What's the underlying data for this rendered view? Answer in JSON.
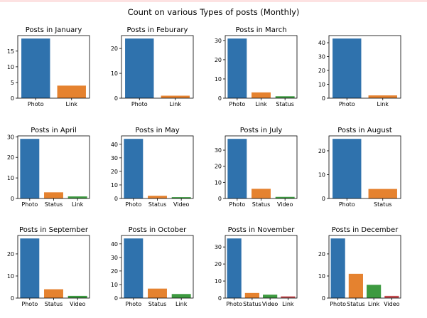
{
  "suptitle": "Count on various Types of posts (Monthly)",
  "colors": {
    "Photo": "#2f72ad",
    "Link": "#e5822f",
    "Status": "#e5822f",
    "Video": "#3d9a40",
    "Link3": "#c44e52"
  },
  "chart_data": [
    {
      "type": "bar",
      "title": "Posts in January",
      "categories": [
        "Photo",
        "Link"
      ],
      "values": [
        19,
        4
      ],
      "ylim": [
        0,
        19.95
      ],
      "yticks": [
        0,
        5,
        10,
        15
      ],
      "colors": [
        "#2f72ad",
        "#e5822f"
      ]
    },
    {
      "type": "bar",
      "title": "Posts in Feburary",
      "categories": [
        "Photo",
        "Link"
      ],
      "values": [
        24,
        1
      ],
      "ylim": [
        0,
        25.2
      ],
      "yticks": [
        0,
        10,
        20
      ],
      "colors": [
        "#2f72ad",
        "#e5822f"
      ]
    },
    {
      "type": "bar",
      "title": "Posts in March",
      "categories": [
        "Photo",
        "Link",
        "Status"
      ],
      "values": [
        31,
        3,
        1
      ],
      "ylim": [
        0,
        32.55
      ],
      "yticks": [
        0,
        10,
        20,
        30
      ],
      "colors": [
        "#2f72ad",
        "#e5822f",
        "#3d9a40"
      ]
    },
    {
      "type": "bar",
      "title": "",
      "categories": [
        "Photo",
        "Link"
      ],
      "values": [
        43,
        2
      ],
      "ylim": [
        0,
        45.15
      ],
      "yticks": [
        0,
        10,
        20,
        30,
        40
      ],
      "colors": [
        "#2f72ad",
        "#e5822f"
      ]
    },
    {
      "type": "bar",
      "title": "Posts in April",
      "categories": [
        "Photo",
        "Status",
        "Link"
      ],
      "values": [
        29,
        3,
        1
      ],
      "ylim": [
        0,
        30.45
      ],
      "yticks": [
        0,
        10,
        20,
        30
      ],
      "colors": [
        "#2f72ad",
        "#e5822f",
        "#3d9a40"
      ]
    },
    {
      "type": "bar",
      "title": "Posts in May",
      "categories": [
        "Photo",
        "Status",
        "Video"
      ],
      "values": [
        44,
        2,
        1
      ],
      "ylim": [
        0,
        46.2
      ],
      "yticks": [
        0,
        10,
        20,
        30,
        40
      ],
      "colors": [
        "#2f72ad",
        "#e5822f",
        "#3d9a40"
      ]
    },
    {
      "type": "bar",
      "title": "Posts in July",
      "categories": [
        "Photo",
        "Status",
        "Video"
      ],
      "values": [
        37,
        6,
        1
      ],
      "ylim": [
        0,
        38.85
      ],
      "yticks": [
        0,
        10,
        20,
        30
      ],
      "colors": [
        "#2f72ad",
        "#e5822f",
        "#3d9a40"
      ]
    },
    {
      "type": "bar",
      "title": "Posts in August",
      "categories": [
        "Photo",
        "Status"
      ],
      "values": [
        25,
        4
      ],
      "ylim": [
        0,
        26.25
      ],
      "yticks": [
        0,
        10,
        20
      ],
      "colors": [
        "#2f72ad",
        "#e5822f"
      ]
    },
    {
      "type": "bar",
      "title": "Posts in September",
      "categories": [
        "Photo",
        "Status",
        "Video"
      ],
      "values": [
        27,
        4,
        1
      ],
      "ylim": [
        0,
        28.35
      ],
      "yticks": [
        0,
        10,
        20
      ],
      "colors": [
        "#2f72ad",
        "#e5822f",
        "#3d9a40"
      ]
    },
    {
      "type": "bar",
      "title": "Posts in October",
      "categories": [
        "Photo",
        "Status",
        "Link"
      ],
      "values": [
        44,
        7,
        3
      ],
      "ylim": [
        0,
        46.2
      ],
      "yticks": [
        0,
        10,
        20,
        30,
        40
      ],
      "colors": [
        "#2f72ad",
        "#e5822f",
        "#3d9a40"
      ]
    },
    {
      "type": "bar",
      "title": "Posts in November",
      "categories": [
        "Photo",
        "Status",
        "Video",
        "Link"
      ],
      "values": [
        35,
        3,
        2,
        1
      ],
      "ylim": [
        0,
        36.75
      ],
      "yticks": [
        0,
        10,
        20,
        30
      ],
      "colors": [
        "#2f72ad",
        "#e5822f",
        "#3d9a40",
        "#c44e52"
      ]
    },
    {
      "type": "bar",
      "title": "Posts in December",
      "categories": [
        "Photo",
        "Status",
        "Link",
        "Video"
      ],
      "values": [
        27,
        11,
        6,
        1
      ],
      "ylim": [
        0,
        28.35
      ],
      "yticks": [
        0,
        10,
        20
      ],
      "colors": [
        "#2f72ad",
        "#e5822f",
        "#3d9a40",
        "#c44e52"
      ]
    }
  ]
}
